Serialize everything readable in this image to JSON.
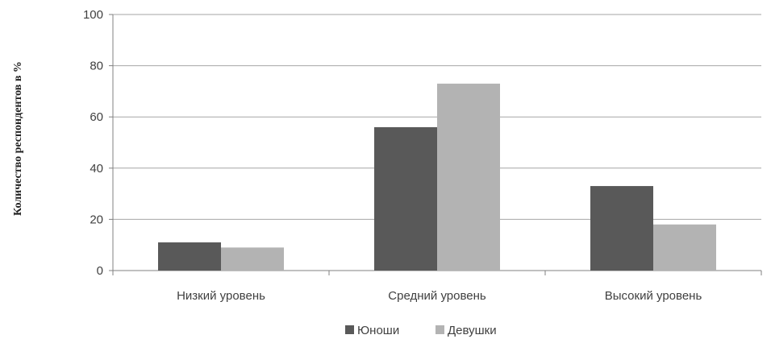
{
  "chart_data": {
    "type": "bar",
    "categories": [
      "Низкий уровень",
      "Средний уровень",
      "Высокий уровень"
    ],
    "series": [
      {
        "name": "Юноши",
        "values": [
          11,
          56,
          33
        ],
        "color": "#595959"
      },
      {
        "name": "Девушки",
        "values": [
          9,
          73,
          18
        ],
        "color": "#b3b3b3"
      }
    ],
    "ylabel": "Количество респондентов в %",
    "xlabel": "",
    "ylim": [
      0,
      100
    ],
    "yticks": [
      0,
      20,
      40,
      60,
      80,
      100
    ],
    "grid": true,
    "legend": "bottom"
  }
}
